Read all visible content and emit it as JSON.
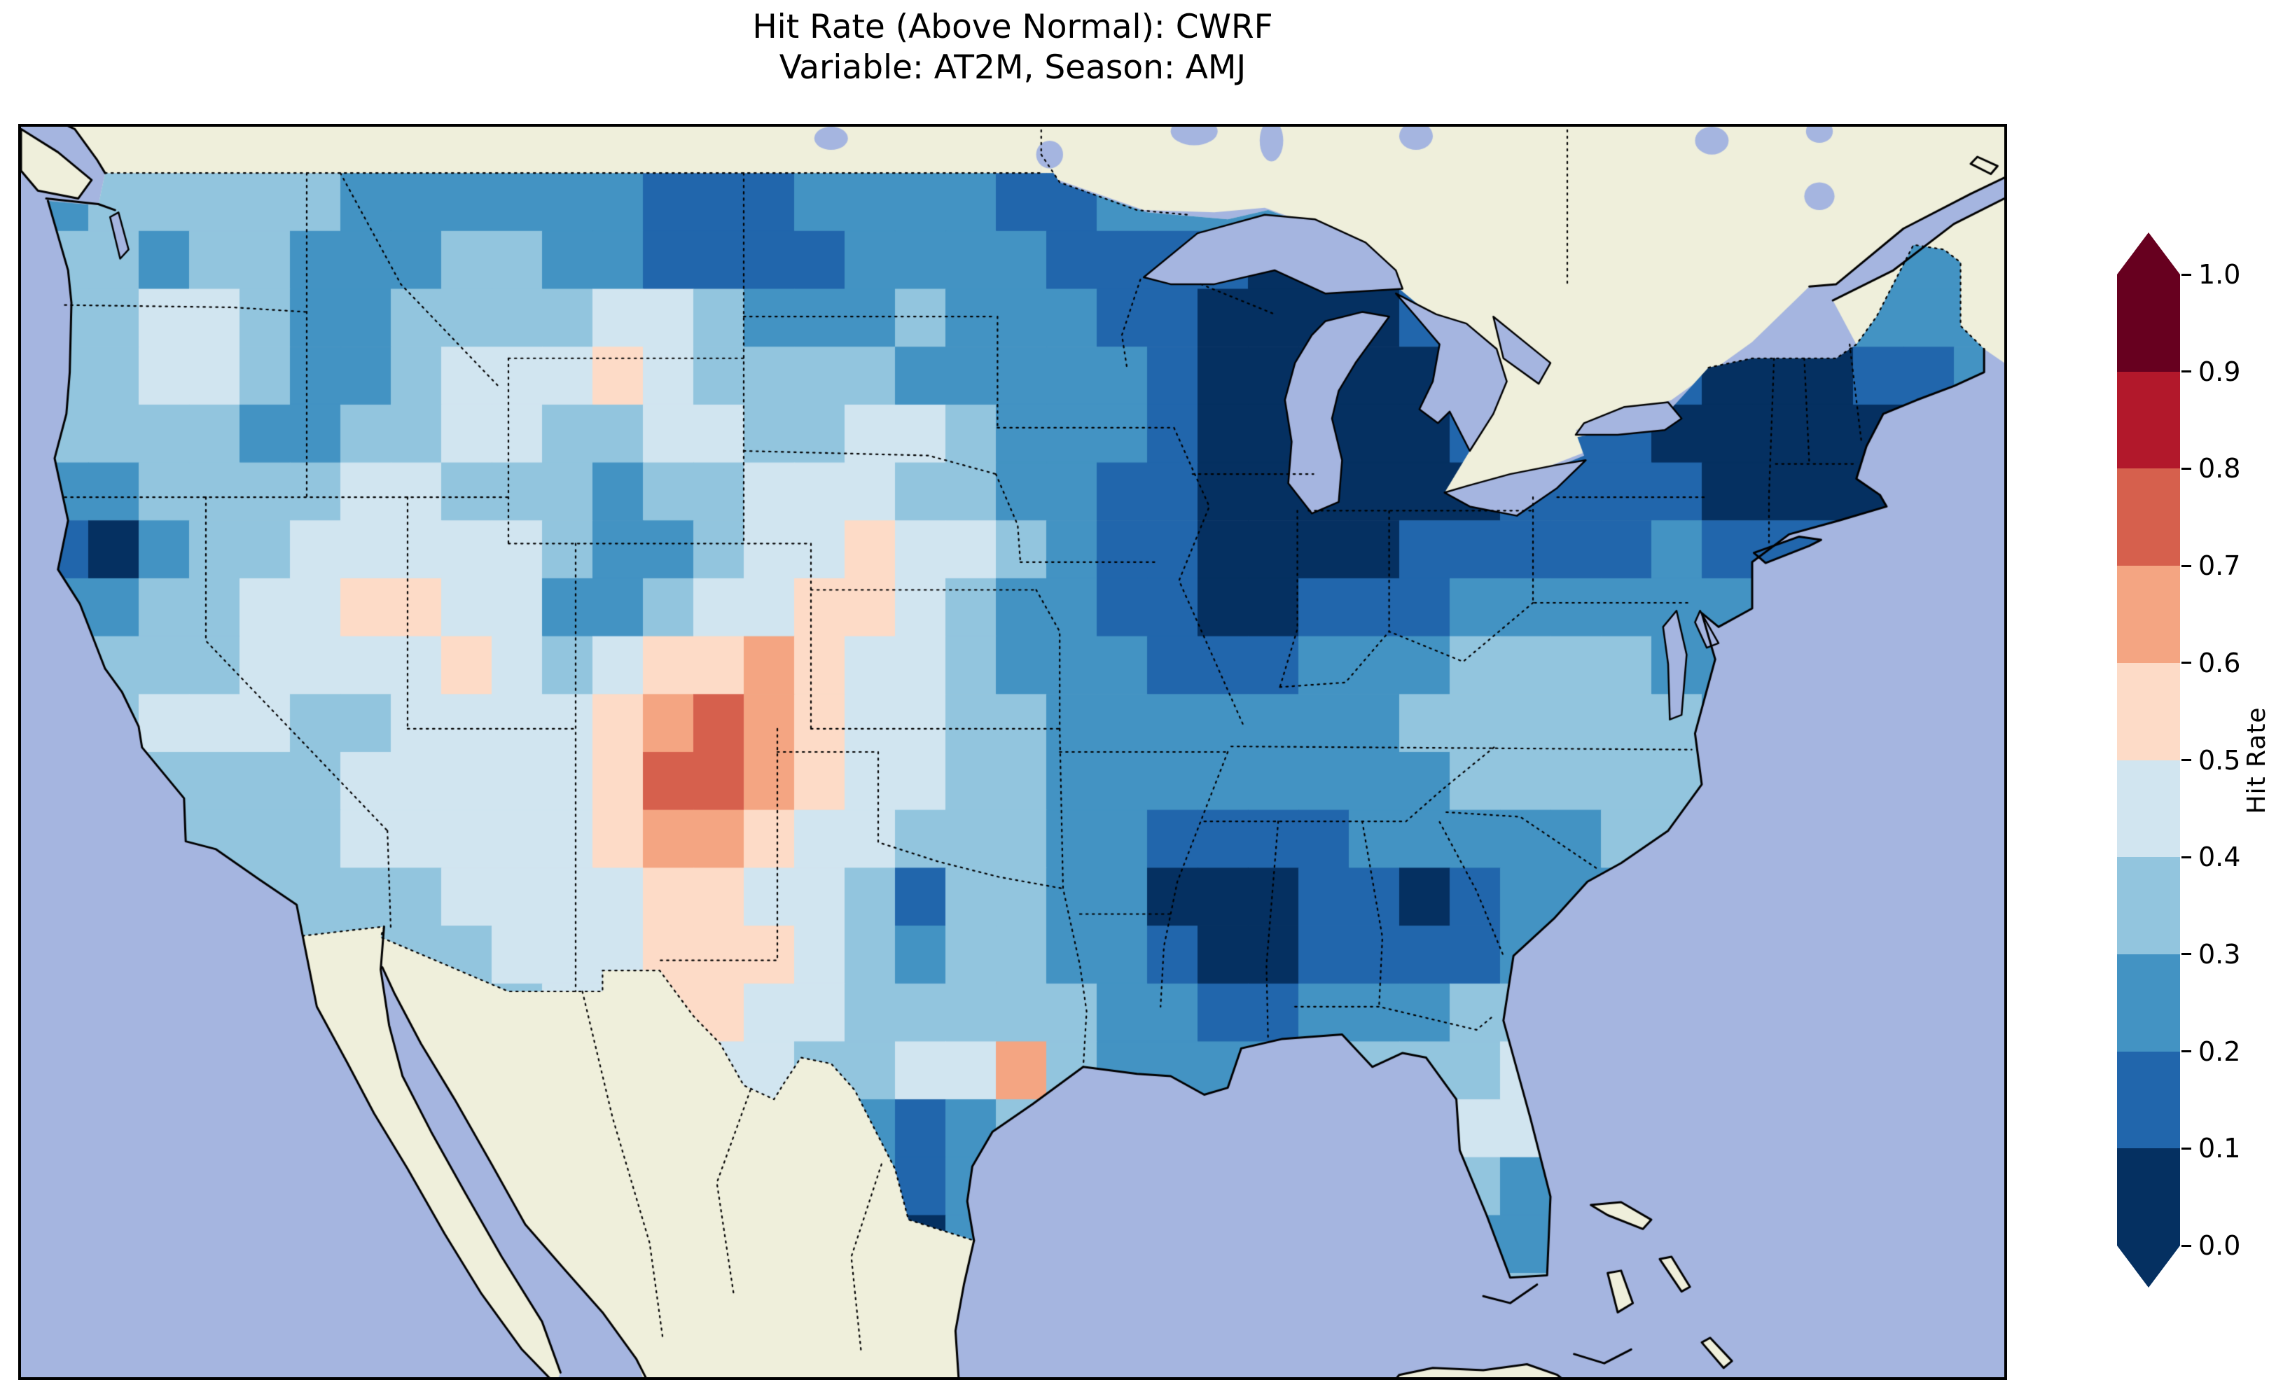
{
  "figure": {
    "title_line1": "Hit Rate (Above Normal): CWRF",
    "title_line2": "Variable: AT2M, Season: AMJ"
  },
  "map": {
    "ocean_color": "#a5b5e0",
    "land_color": "#efefdb",
    "frame_color": "#000000",
    "extent": {
      "lon_min": -125.5,
      "lon_max": -66.5,
      "lat_min": 23,
      "lat_max": 50
    }
  },
  "colorbar": {
    "label": "Hit Rate",
    "ticks": [
      "1.0",
      "0.9",
      "0.8",
      "0.7",
      "0.6",
      "0.5",
      "0.4",
      "0.3",
      "0.2",
      "0.1",
      "0.0"
    ],
    "bin_colors_low_to_high": [
      "#053061",
      "#2166ac",
      "#4393c3",
      "#92c5de",
      "#d1e5f0",
      "#fddbc7",
      "#f4a582",
      "#d6604d",
      "#b2182b",
      "#67001f"
    ],
    "under_color": "#053061",
    "over_color": "#67001f"
  },
  "chart_data": {
    "type": "heatmap",
    "title": "Hit Rate (Above Normal): CWRF — Variable: AT2M, Season: AMJ",
    "colorbar_label": "Hit Rate",
    "colorbar_range": [
      0.0,
      1.0
    ],
    "colorbar_tick_step": 0.1,
    "colormap": "RdBu_r discrete with 0.1 bins, extended triangles at both ends",
    "region": "Contiguous United States (gridded hit-rate field, masked to US land)",
    "grid": {
      "lon_start": -125.0,
      "lon_step": 1.5,
      "lat_start": 49.0,
      "lat_step": -1.25,
      "n_cols": 40,
      "n_rows": 20,
      "encoding": "each char = hit-rate bin index 0-9; value ~ 0.05 + 0.1 * index; field clipped to US landmass",
      "rows": [
        "2333332222221112222112222233333332222222",
        "3323322233221111222211110012333322222222",
        "3344322333344322232221100001222211112222",
        "3344322344454333322222100000122110001122",
        "3333223344334433443222100000111100000122",
        "2233334433323344433221100000011110000122",
        "1023344444322344544321100001111121111222",
        "2233445544223445543221100111222222222222",
        "2333444454345565443222111222333322222222",
        "3344433444456765443322222223333332222222",
        "3333334444457765443322222222333333222222",
        "3333334444456654433322111122222333222222",
        "3333333344445544313322000110122222222222",
        "3333333334445554323322100111122222222222",
        "3333333333445544333332211222333333333333",
        "3333333333344443344632222333344333333333",
        "3333333333334433212333333333444433333333",
        "3333333333333332212333333333322333333333",
        "3333333333333332102333333333222222222222",
        "3333333333333333333333333333333333333333"
      ]
    },
    "notable_features": [
      "Very low hit rates (0.0-0.1, dark navy) over Wisconsin/Michigan/Indiana/Ohio, New England, Mississippi-Alabama and central Georgia",
      "High hit rates (0.6-0.8, salmon/red) over eastern New Mexico / southeastern Colorado, with smaller warm spots in far-west Texas and near Houston",
      "Most of the remaining US in the 0.2-0.4 range (medium blues)"
    ]
  }
}
